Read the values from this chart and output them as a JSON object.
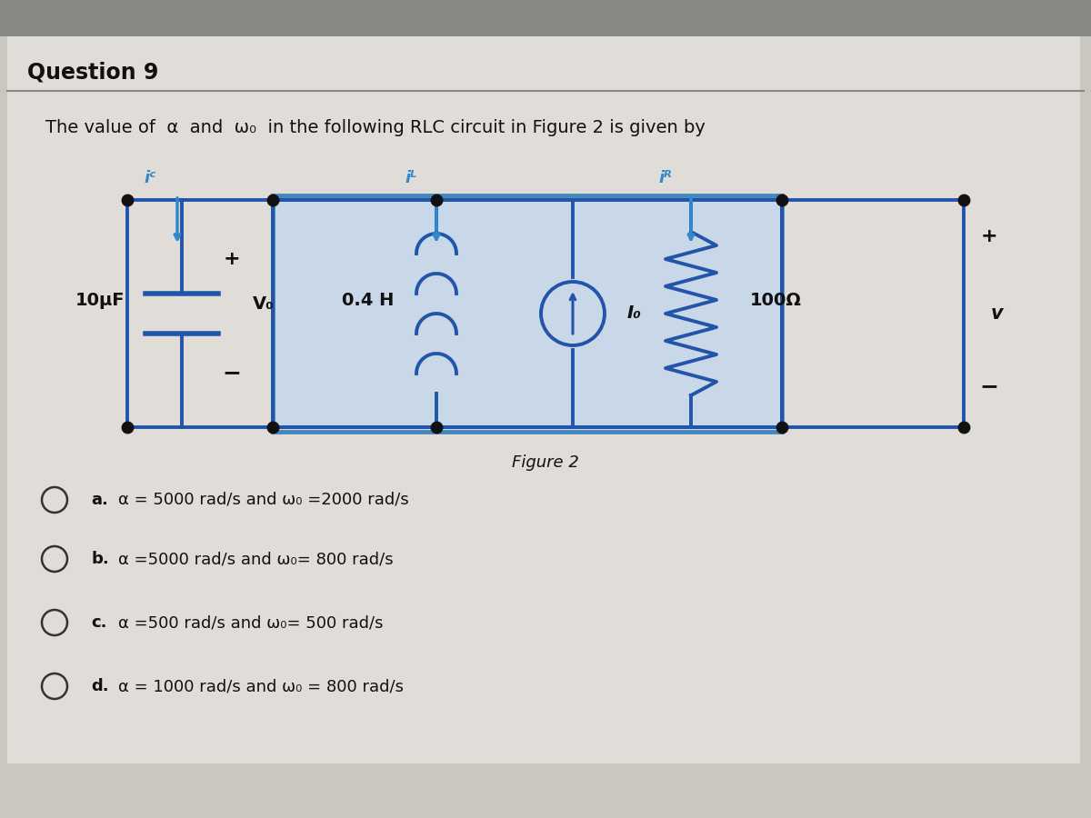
{
  "title": "Question 9",
  "subtitle_parts": [
    "The value of ",
    "α",
    " and ",
    "ω₀",
    " in the following RLC circuit in Figure 2 is given by"
  ],
  "figure_label": "Figure 2",
  "bg_color": "#d4d0cc",
  "main_bg": "#ccc8c4",
  "circuit_box_fill": "#c8d8e8",
  "circuit_box_edge": "#4488bb",
  "wire_color": "#2255aa",
  "current_color": "#3388cc",
  "node_color": "#111111",
  "text_color": "#111111",
  "options_raw": [
    [
      "α = 5000 rad/s and ω₀ =2000 rad/s",
      "a"
    ],
    [
      "α =5000 rad/s and ω₀= 800 rad/s",
      "b"
    ],
    [
      "α =500 rad/s and ω₀= 500 rad/s",
      "c"
    ],
    [
      "α = 1000 rad/s and ω₀ = 800 rad/s",
      "d"
    ]
  ],
  "cap_label": "10μF",
  "vo_label": "V₀",
  "ind_label": "0.4 H",
  "io_label": "I₀",
  "res_label": "100Ω",
  "v_label": "v",
  "ic_label": "iᶜ",
  "il_label": "iᴸ",
  "ir_label": "iᴿ"
}
